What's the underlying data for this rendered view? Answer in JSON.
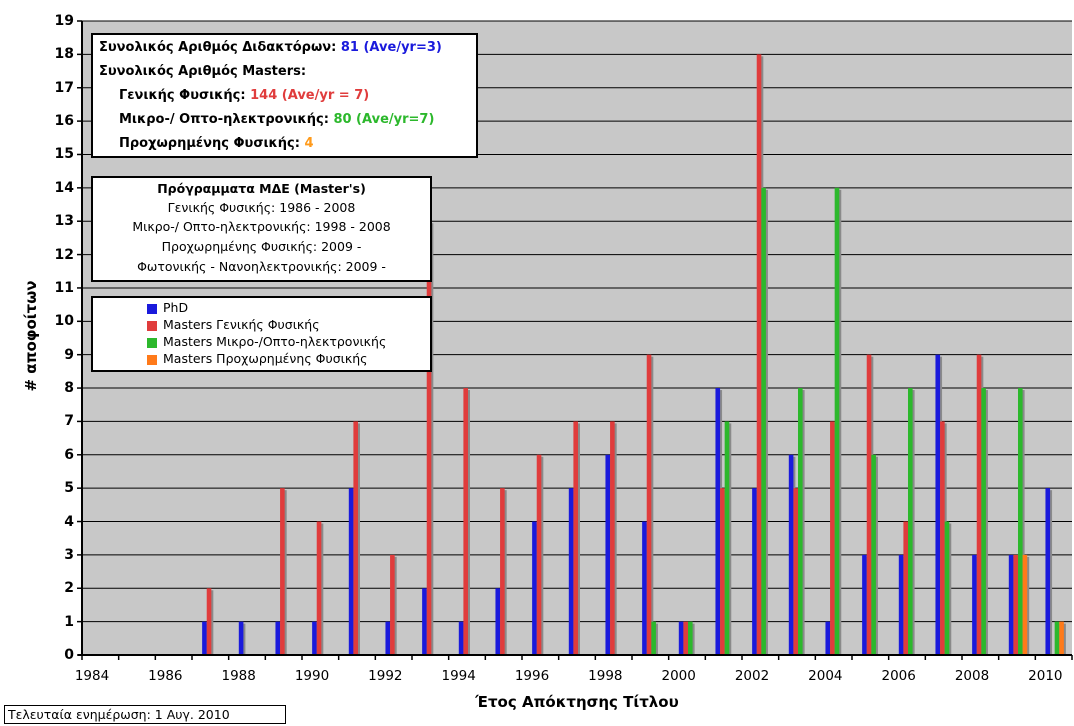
{
  "chart_data": {
    "type": "bar",
    "xlabel": "Έτος Απόκτησης Τίτλου",
    "ylabel": "# αποφοίτων",
    "ylim": [
      0,
      19
    ],
    "grid": true,
    "categories": [
      "1984",
      "1985",
      "1986",
      "1987",
      "1988",
      "1989",
      "1990",
      "1991",
      "1992",
      "1993",
      "1994",
      "1995",
      "1996",
      "1997",
      "1998",
      "1999",
      "2000",
      "2001",
      "2002",
      "2003",
      "2004",
      "2005",
      "2006",
      "2007",
      "2008",
      "2009",
      "2010"
    ],
    "x_tick_labels": [
      "1984",
      "1986",
      "1988",
      "1990",
      "1992",
      "1994",
      "1996",
      "1998",
      "2000",
      "2002",
      "2004",
      "2006",
      "2008",
      "2010"
    ],
    "y_tick_labels": [
      "0",
      "1",
      "2",
      "3",
      "4",
      "5",
      "6",
      "7",
      "8",
      "9",
      "10",
      "11",
      "12",
      "13",
      "14",
      "15",
      "16",
      "17",
      "18",
      "19"
    ],
    "series": [
      {
        "name": "PhD",
        "color": "#1a1adc",
        "values": [
          0,
          0,
          0,
          1,
          1,
          1,
          1,
          5,
          1,
          2,
          1,
          2,
          4,
          5,
          6,
          4,
          1,
          8,
          5,
          6,
          1,
          3,
          3,
          9,
          3,
          3,
          5
        ]
      },
      {
        "name": "Masters Γενικής Φυσικής",
        "color": "#e03c3c",
        "values": [
          0,
          0,
          0,
          2,
          0,
          5,
          4,
          7,
          3,
          13,
          8,
          5,
          6,
          7,
          7,
          9,
          1,
          5,
          18,
          5,
          7,
          9,
          4,
          7,
          9,
          3,
          0
        ]
      },
      {
        "name": "Masters Μικρο-/Οπτο-ηλεκτρονικής",
        "color": "#2cb82c",
        "values": [
          0,
          0,
          0,
          0,
          0,
          0,
          0,
          0,
          0,
          0,
          0,
          0,
          0,
          0,
          0,
          1,
          1,
          7,
          14,
          8,
          14,
          6,
          8,
          4,
          8,
          8,
          1
        ]
      },
      {
        "name": "Masters Προχωρημένης Φυσικής",
        "color": "#ff7a1a",
        "values": [
          0,
          0,
          0,
          0,
          0,
          0,
          0,
          0,
          0,
          0,
          0,
          0,
          0,
          0,
          0,
          0,
          0,
          0,
          0,
          0,
          0,
          0,
          0,
          0,
          0,
          3,
          1
        ]
      }
    ]
  },
  "stats_box": {
    "phd_label": "Συνολικός Αριθμός Διδακτόρων:",
    "phd_value": "81 (Ave/yr=3)",
    "masters_label": "Συνολικός Αριθμός Masters:",
    "general_label": "Γενικής Φυσικής:",
    "general_value": "144 (Ave/yr = 7)",
    "micro_label": "Μικρο-/ Οπτο-ηλεκτρονικής:",
    "micro_value": "80 (Ave/yr=7)",
    "advanced_label": "Προχωρημένης Φυσικής:",
    "advanced_value": "4"
  },
  "programs_box": {
    "title": "Πρόγραμματα ΜΔΕ (Master's)",
    "lines": [
      "Γενικής Φυσικής: 1986 - 2008",
      "Μικρο-/ Οπτο-ηλεκτρονικής: 1998 - 2008",
      "Προχωρημένης Φυσικής: 2009 -",
      "Φωτονικής - Νανοηλεκτρονικής: 2009 -"
    ]
  },
  "legend": [
    "PhD",
    "Masters Γενικής Φυσικής",
    "Masters Μικρο-/Οπτο-ηλεκτρονικής",
    "Masters Προχωρημένης Φυσικής"
  ],
  "footer": "Τελευταία ενημέρωση: 1 Αυγ. 2010",
  "colors": {
    "plot_bg": "#c8c8c8",
    "phd": "#1a1adc",
    "general": "#e03c3c",
    "micro": "#2cb82c",
    "advanced": "#ff7a1a",
    "phd_value_text": "#1a1adc",
    "general_value_text": "#e03c3c",
    "micro_value_text": "#2cb82c",
    "advanced_value_text": "#ff9a1a"
  }
}
